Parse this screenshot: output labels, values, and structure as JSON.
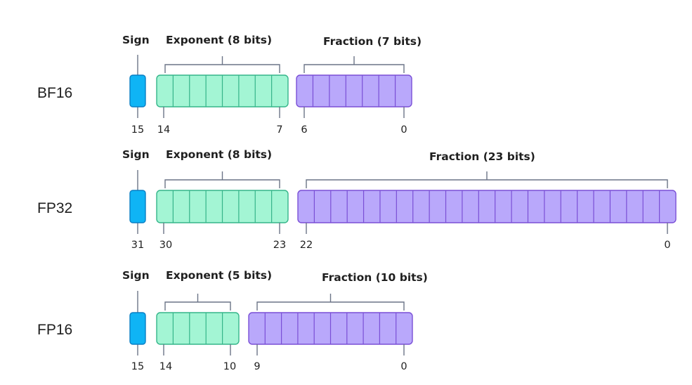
{
  "colors": {
    "sign_fill": "#0fb4f5",
    "sign_stroke": "#0a7fc4",
    "exponent_fill": "#a3f5d4",
    "exponent_stroke": "#35b58a",
    "fraction_fill": "#b9a8fb",
    "fraction_stroke": "#7a4fd6",
    "bracket": "#6b7487",
    "text": "#1f1f1f"
  },
  "formats": [
    {
      "name": "BF16",
      "sign": {
        "label": "Sign",
        "index": "15"
      },
      "exponent": {
        "label": "Exponent (8 bits)",
        "bits": 8,
        "start_index": "14",
        "end_index": "7"
      },
      "fraction": {
        "label": "Fraction (7 bits)",
        "bits": 7,
        "start_index": "6",
        "end_index": "0"
      }
    },
    {
      "name": "FP32",
      "sign": {
        "label": "Sign",
        "index": "31"
      },
      "exponent": {
        "label": "Exponent (8 bits)",
        "bits": 8,
        "start_index": "30",
        "end_index": "23"
      },
      "fraction": {
        "label": "Fraction (23 bits)",
        "bits": 23,
        "start_index": "22",
        "end_index": "0"
      }
    },
    {
      "name": "FP16",
      "sign": {
        "label": "Sign",
        "index": "15"
      },
      "exponent": {
        "label": "Exponent (5 bits)",
        "bits": 5,
        "start_index": "14",
        "end_index": "10"
      },
      "fraction": {
        "label": "Fraction (10 bits)",
        "bits": 10,
        "start_index": "9",
        "end_index": "0"
      }
    }
  ]
}
